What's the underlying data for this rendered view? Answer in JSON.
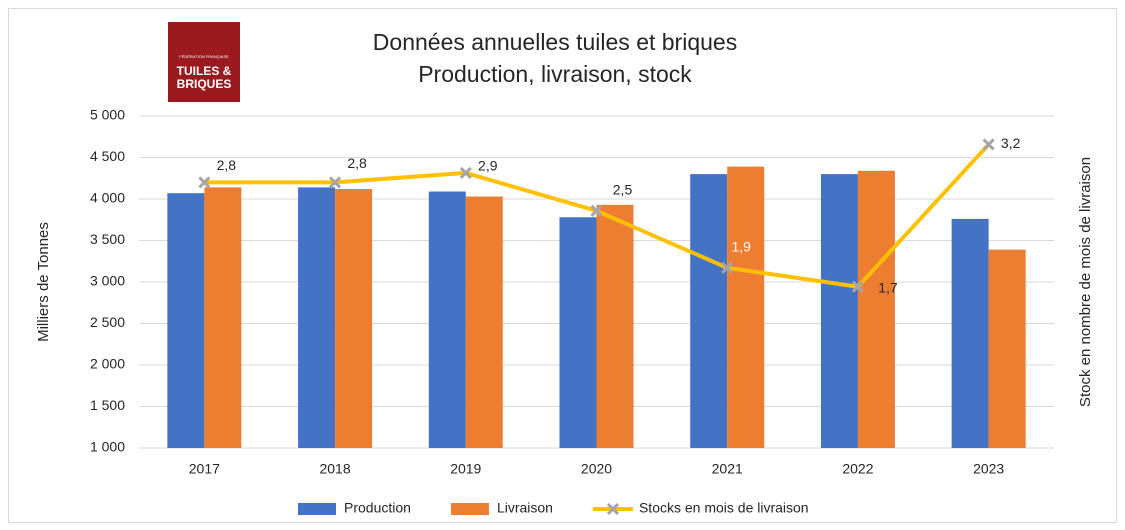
{
  "chart_data": {
    "type": "bar_line",
    "title": "Données annuelles tuiles et briques",
    "subtitle": "Production, livraison, stock",
    "logo": [
      "FÉDÉRATION FRANÇAISE",
      "TUILES &",
      "BRIQUES"
    ],
    "ylabel": "Milliers de Tonnes",
    "y2label": "Stock en nombre de  mois de livraison",
    "categories": [
      "2017",
      "2018",
      "2019",
      "2020",
      "2021",
      "2022",
      "2023"
    ],
    "series": [
      {
        "name": "Production",
        "color": "#4472c4",
        "type": "bar",
        "values": [
          4070,
          4140,
          4090,
          3780,
          4300,
          4300,
          3760
        ]
      },
      {
        "name": "Livraison",
        "color": "#ed7d31",
        "type": "bar",
        "values": [
          4140,
          4120,
          4030,
          3930,
          4390,
          4340,
          3390
        ]
      },
      {
        "name": "Stocks en mois  de livraison",
        "color": "#ffc000",
        "type": "line",
        "axis": "y2",
        "values": [
          2.8,
          2.8,
          2.9,
          2.5,
          1.9,
          1.7,
          3.2
        ],
        "value_labels": [
          "2,8",
          "2,8",
          "2,9",
          "2,5",
          "1,9",
          "1,7",
          "3,2"
        ]
      }
    ],
    "ylim": [
      1000,
      5000
    ],
    "yticks": [
      {
        "value": 1000,
        "label": "1 000"
      },
      {
        "value": 1500,
        "label": "1 500"
      },
      {
        "value": 2000,
        "label": "2 000"
      },
      {
        "value": 2500,
        "label": "2 500"
      },
      {
        "value": 3000,
        "label": "3 000"
      },
      {
        "value": 3500,
        "label": "3 500"
      },
      {
        "value": 4000,
        "label": "4 000"
      },
      {
        "value": 4500,
        "label": "4 500"
      },
      {
        "value": 5000,
        "label": "5 000"
      }
    ],
    "y2lim": [
      0,
      3.5
    ],
    "grid": true,
    "legend": "bottom"
  }
}
